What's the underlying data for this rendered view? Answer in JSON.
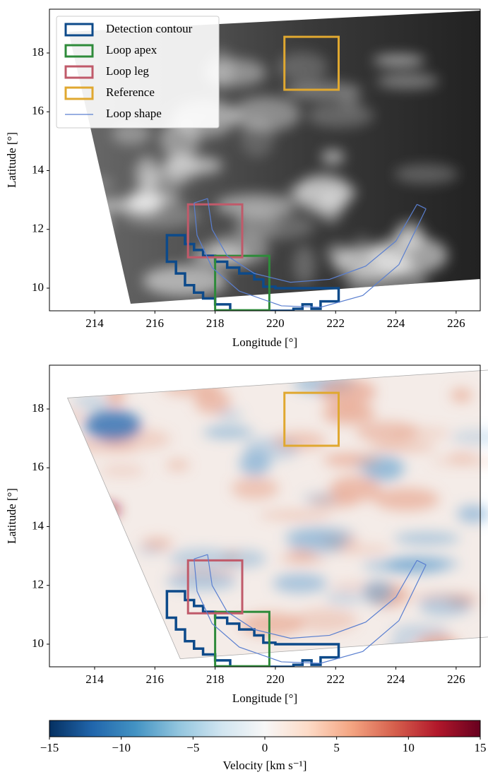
{
  "chart_data": [
    {
      "type": "map",
      "xlabel": "Longitude [°]",
      "ylabel": "Latitude [°]",
      "xlim": [
        212.5,
        226.8
      ],
      "ylim": [
        9.23,
        19.49
      ],
      "xticks": [
        214,
        216,
        218,
        220,
        222,
        224,
        226
      ],
      "yticks": [
        10,
        12,
        14,
        16,
        18
      ],
      "colormap": "gray",
      "legend": "upper left",
      "regions": [
        {
          "name": "Detection contour",
          "color": "#0d4a8a",
          "kind": "polygon",
          "x": [
            216.4,
            217.0,
            217.0,
            217.3,
            217.3,
            217.6,
            217.6,
            218.0,
            218.0,
            218.4,
            218.4,
            218.8,
            218.8,
            219.3,
            219.3,
            219.6,
            219.6,
            220.0,
            220.0,
            222.1,
            222.1,
            221.5,
            221.5,
            221.2,
            221.2,
            220.9,
            220.9,
            220.6,
            220.6,
            218.5,
            218.5,
            218.0,
            218.0,
            217.6,
            217.6,
            217.3,
            217.3,
            217.0,
            217.0,
            216.7,
            216.7,
            216.4
          ],
          "y": [
            11.8,
            11.8,
            11.5,
            11.5,
            11.3,
            11.3,
            11.1,
            11.1,
            10.9,
            10.9,
            10.7,
            10.7,
            10.5,
            10.5,
            10.3,
            10.3,
            10.05,
            10.05,
            10.0,
            10.0,
            9.55,
            9.55,
            9.3,
            9.3,
            9.45,
            9.45,
            9.3,
            9.3,
            9.23,
            9.23,
            9.45,
            9.45,
            9.65,
            9.65,
            9.85,
            9.85,
            10.1,
            10.1,
            10.5,
            10.5,
            10.9,
            10.9
          ]
        },
        {
          "name": "Loop apex",
          "color": "#2e8b3a",
          "kind": "box",
          "x": [
            218.0,
            219.8
          ],
          "y": [
            9.25,
            11.1
          ]
        },
        {
          "name": "Loop leg",
          "color": "#c05a6a",
          "kind": "box",
          "x": [
            217.1,
            218.9
          ],
          "y": [
            11.05,
            12.85
          ]
        },
        {
          "name": "Reference",
          "color": "#e0a830",
          "kind": "box",
          "x": [
            220.3,
            222.1
          ],
          "y": [
            16.75,
            18.55
          ]
        },
        {
          "name": "Loop shape",
          "color": "#5a7fd0",
          "kind": "band",
          "edges": [
            {
              "x": [
                217.75,
                217.9,
                218.4,
                219.3,
                220.5,
                221.8,
                223.0,
                224.0,
                224.7
              ],
              "y": [
                13.05,
                12.0,
                11.1,
                10.5,
                10.2,
                10.3,
                10.75,
                11.6,
                12.85
              ]
            },
            {
              "x": [
                217.3,
                217.4,
                217.9,
                218.8,
                220.2,
                221.5,
                222.9,
                224.1,
                225.0
              ],
              "y": [
                12.9,
                11.8,
                10.7,
                9.9,
                9.4,
                9.35,
                9.75,
                10.8,
                12.7
              ]
            }
          ]
        }
      ]
    },
    {
      "type": "map",
      "xlabel": "Longitude [°]",
      "ylabel": "Latitude [°]",
      "xlim": [
        212.5,
        226.8
      ],
      "ylim": [
        9.23,
        19.49
      ],
      "xticks": [
        214,
        216,
        218,
        220,
        222,
        224,
        226
      ],
      "yticks": [
        10,
        12,
        14,
        16,
        18
      ],
      "colormap": "RdBu_r",
      "regions": [
        {
          "color": "#0d4a8a",
          "kind": "polygon",
          "x": [
            216.4,
            217.0,
            217.0,
            217.3,
            217.3,
            217.6,
            217.6,
            218.0,
            218.0,
            218.4,
            218.4,
            218.8,
            218.8,
            219.3,
            219.3,
            219.6,
            219.6,
            220.0,
            220.0,
            222.1,
            222.1,
            221.5,
            221.5,
            221.2,
            221.2,
            220.9,
            220.9,
            220.6,
            220.6,
            218.5,
            218.5,
            218.0,
            218.0,
            217.6,
            217.6,
            217.3,
            217.3,
            217.0,
            217.0,
            216.7,
            216.7,
            216.4
          ],
          "y": [
            11.8,
            11.8,
            11.5,
            11.5,
            11.3,
            11.3,
            11.1,
            11.1,
            10.9,
            10.9,
            10.7,
            10.7,
            10.5,
            10.5,
            10.3,
            10.3,
            10.05,
            10.05,
            10.0,
            10.0,
            9.55,
            9.55,
            9.3,
            9.3,
            9.45,
            9.45,
            9.3,
            9.3,
            9.23,
            9.23,
            9.45,
            9.45,
            9.65,
            9.65,
            9.85,
            9.85,
            10.1,
            10.1,
            10.5,
            10.5,
            10.9,
            10.9
          ]
        },
        {
          "color": "#2e8b3a",
          "kind": "box",
          "x": [
            218.0,
            219.8
          ],
          "y": [
            9.25,
            11.1
          ]
        },
        {
          "color": "#c05a6a",
          "kind": "box",
          "x": [
            217.1,
            218.9
          ],
          "y": [
            11.05,
            12.85
          ]
        },
        {
          "color": "#e0a830",
          "kind": "box",
          "x": [
            220.3,
            222.1
          ],
          "y": [
            16.75,
            18.55
          ]
        },
        {
          "color": "#5a7fd0",
          "kind": "band",
          "edges": [
            {
              "x": [
                217.75,
                217.9,
                218.4,
                219.3,
                220.5,
                221.8,
                223.0,
                224.0,
                224.7
              ],
              "y": [
                13.05,
                12.0,
                11.1,
                10.5,
                10.2,
                10.3,
                10.75,
                11.6,
                12.85
              ]
            },
            {
              "x": [
                217.3,
                217.4,
                217.9,
                218.8,
                220.2,
                221.5,
                222.9,
                224.1,
                225.0
              ],
              "y": [
                12.9,
                11.8,
                10.7,
                9.9,
                9.4,
                9.35,
                9.75,
                10.8,
                12.7
              ]
            }
          ]
        }
      ]
    },
    {
      "type": "colorbar",
      "xlabel": "Velocity [km s⁻¹]",
      "colormap": "RdBu_r",
      "xlim": [
        -15,
        15
      ],
      "xticks": [
        {
          "value": -15,
          "label": "−15"
        },
        {
          "value": -10,
          "label": "−10"
        },
        {
          "value": -5,
          "label": "−5"
        },
        0,
        5,
        10,
        15
      ]
    }
  ]
}
